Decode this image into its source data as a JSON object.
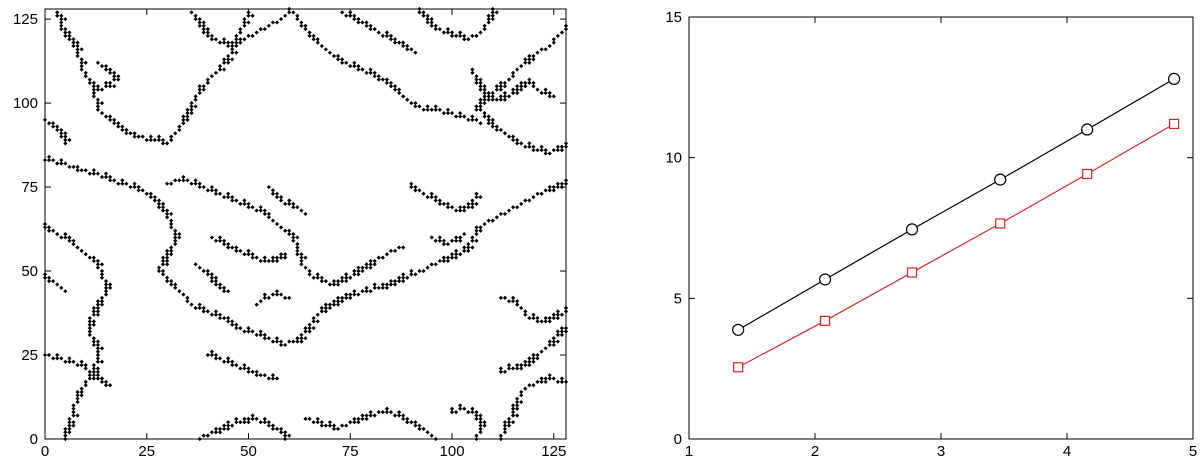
{
  "chart_data": [
    {
      "type": "scatter",
      "title": "",
      "xlabel": "",
      "ylabel": "",
      "xlim": [
        0,
        128
      ],
      "ylim": [
        0,
        128
      ],
      "x_ticks": [
        "0",
        "25",
        "50",
        "75",
        "100",
        "125"
      ],
      "y_ticks": [
        "0",
        "25",
        "50",
        "75",
        "100",
        "125"
      ],
      "grid": false,
      "marker_color": "#000000",
      "marker": "diamond",
      "boundary_paths": [
        [
          [
            3,
            127
          ],
          [
            5,
            120
          ],
          [
            8,
            116
          ],
          [
            9,
            110
          ],
          [
            12,
            105
          ],
          [
            13,
            98
          ],
          [
            16,
            95
          ],
          [
            19,
            92
          ],
          [
            22,
            90
          ],
          [
            26,
            89
          ],
          [
            30,
            88
          ],
          [
            32,
            91
          ],
          [
            34,
            95
          ],
          [
            36,
            99
          ],
          [
            38,
            104
          ],
          [
            41,
            108
          ],
          [
            44,
            112
          ],
          [
            46,
            116
          ],
          [
            47,
            120
          ],
          [
            49,
            124
          ],
          [
            50,
            127
          ]
        ],
        [
          [
            0,
            83
          ],
          [
            4,
            82
          ],
          [
            8,
            80
          ],
          [
            12,
            79
          ],
          [
            16,
            77
          ],
          [
            19,
            76
          ],
          [
            22,
            75
          ],
          [
            26,
            72
          ],
          [
            29,
            68
          ],
          [
            31,
            64
          ],
          [
            32,
            60
          ],
          [
            31,
            56
          ],
          [
            29,
            53
          ],
          [
            28,
            50
          ],
          [
            31,
            46
          ],
          [
            34,
            43
          ],
          [
            36,
            40
          ],
          [
            39,
            38
          ],
          [
            42,
            37
          ],
          [
            45,
            35
          ],
          [
            47,
            33
          ],
          [
            50,
            32
          ],
          [
            54,
            30
          ],
          [
            58,
            28
          ],
          [
            62,
            29
          ]
        ],
        [
          [
            62,
            29
          ],
          [
            64,
            32
          ],
          [
            66,
            36
          ],
          [
            69,
            39
          ],
          [
            72,
            41
          ],
          [
            76,
            43
          ],
          [
            79,
            44
          ],
          [
            83,
            45
          ],
          [
            87,
            47
          ],
          [
            91,
            49
          ],
          [
            94,
            51
          ],
          [
            97,
            53
          ],
          [
            100,
            54
          ],
          [
            103,
            56
          ],
          [
            105,
            59
          ],
          [
            106,
            62
          ],
          [
            108,
            64
          ],
          [
            111,
            66
          ],
          [
            114,
            68
          ],
          [
            117,
            70
          ],
          [
            120,
            72
          ],
          [
            124,
            74
          ],
          [
            128,
            76
          ]
        ],
        [
          [
            30,
            76
          ],
          [
            34,
            77
          ],
          [
            38,
            75
          ],
          [
            42,
            73
          ],
          [
            46,
            71
          ],
          [
            50,
            69
          ],
          [
            54,
            67
          ],
          [
            57,
            64
          ],
          [
            60,
            61
          ],
          [
            62,
            57
          ],
          [
            63,
            52
          ],
          [
            66,
            48
          ],
          [
            70,
            46
          ],
          [
            73,
            47
          ],
          [
            76,
            49
          ],
          [
            80,
            52
          ],
          [
            84,
            55
          ],
          [
            88,
            57
          ]
        ],
        [
          [
            0,
            63
          ],
          [
            3,
            61
          ],
          [
            6,
            59
          ],
          [
            9,
            56
          ],
          [
            12,
            53
          ],
          [
            14,
            49
          ],
          [
            15,
            45
          ],
          [
            14,
            41
          ],
          [
            12,
            38
          ],
          [
            11,
            35
          ],
          [
            11,
            32
          ],
          [
            12,
            29
          ],
          [
            13,
            25
          ],
          [
            12,
            21
          ],
          [
            10,
            17
          ],
          [
            8,
            13
          ],
          [
            7,
            9
          ],
          [
            6,
            5
          ],
          [
            5,
            0
          ]
        ],
        [
          [
            0,
            25
          ],
          [
            3,
            24
          ],
          [
            6,
            23
          ],
          [
            9,
            22
          ],
          [
            11,
            20
          ],
          [
            13,
            18
          ],
          [
            15,
            16
          ]
        ],
        [
          [
            40,
            25
          ],
          [
            44,
            23
          ],
          [
            47,
            22
          ],
          [
            50,
            20
          ],
          [
            52,
            19
          ],
          [
            56,
            18
          ]
        ],
        [
          [
            38,
            0
          ],
          [
            42,
            2
          ],
          [
            45,
            4
          ],
          [
            48,
            5
          ],
          [
            52,
            6
          ],
          [
            55,
            4
          ],
          [
            58,
            2
          ],
          [
            59,
            0
          ]
        ],
        [
          [
            64,
            6
          ],
          [
            68,
            4
          ],
          [
            72,
            3
          ],
          [
            76,
            5
          ],
          [
            80,
            7
          ],
          [
            84,
            8
          ],
          [
            88,
            6
          ],
          [
            91,
            4
          ],
          [
            94,
            2
          ],
          [
            96,
            0
          ]
        ],
        [
          [
            100,
            8
          ],
          [
            103,
            9
          ],
          [
            106,
            7
          ],
          [
            107,
            4
          ],
          [
            106,
            0
          ]
        ],
        [
          [
            112,
            20
          ],
          [
            115,
            21
          ],
          [
            118,
            22
          ],
          [
            120,
            24
          ],
          [
            122,
            26
          ],
          [
            124,
            28
          ],
          [
            126,
            31
          ],
          [
            128,
            33
          ]
        ],
        [
          [
            112,
            0
          ],
          [
            113,
            4
          ],
          [
            115,
            8
          ],
          [
            116,
            12
          ],
          [
            118,
            15
          ],
          [
            121,
            17
          ],
          [
            124,
            18
          ],
          [
            127,
            17
          ]
        ],
        [
          [
            112,
            42
          ],
          [
            115,
            41
          ],
          [
            117,
            39
          ],
          [
            119,
            36
          ],
          [
            122,
            35
          ],
          [
            125,
            36
          ],
          [
            128,
            38
          ]
        ],
        [
          [
            36,
            127
          ],
          [
            38,
            123
          ],
          [
            40,
            120
          ],
          [
            43,
            118
          ],
          [
            46,
            117
          ],
          [
            49,
            119
          ],
          [
            52,
            121
          ],
          [
            55,
            123
          ],
          [
            58,
            125
          ],
          [
            60,
            127
          ]
        ],
        [
          [
            61,
            127
          ],
          [
            63,
            123
          ],
          [
            66,
            119
          ],
          [
            69,
            116
          ],
          [
            72,
            113
          ],
          [
            75,
            111
          ],
          [
            78,
            110
          ],
          [
            81,
            108
          ],
          [
            84,
            106
          ],
          [
            86,
            104
          ],
          [
            89,
            101
          ],
          [
            91,
            99
          ],
          [
            93,
            98
          ],
          [
            96,
            98
          ],
          [
            99,
            97
          ],
          [
            102,
            96
          ],
          [
            105,
            95
          ],
          [
            107,
            94
          ]
        ],
        [
          [
            92,
            127
          ],
          [
            95,
            123
          ],
          [
            98,
            121
          ],
          [
            101,
            120
          ],
          [
            104,
            119
          ],
          [
            107,
            121
          ],
          [
            109,
            124
          ],
          [
            110,
            127
          ]
        ],
        [
          [
            106,
            98
          ],
          [
            108,
            101
          ],
          [
            111,
            104
          ],
          [
            114,
            107
          ],
          [
            116,
            110
          ],
          [
            119,
            113
          ],
          [
            121,
            115
          ],
          [
            124,
            117
          ],
          [
            126,
            120
          ],
          [
            128,
            122
          ]
        ],
        [
          [
            108,
            96
          ],
          [
            110,
            93
          ],
          [
            113,
            91
          ],
          [
            115,
            89
          ],
          [
            118,
            87
          ],
          [
            121,
            86
          ],
          [
            124,
            85
          ],
          [
            126,
            86
          ],
          [
            128,
            87
          ]
        ],
        [
          [
            105,
            110
          ],
          [
            106,
            106
          ],
          [
            108,
            103
          ],
          [
            110,
            101
          ],
          [
            112,
            101
          ],
          [
            115,
            103
          ],
          [
            117,
            105
          ],
          [
            119,
            106
          ],
          [
            121,
            104
          ],
          [
            124,
            102
          ]
        ],
        [
          [
            90,
            75
          ],
          [
            93,
            73
          ],
          [
            96,
            71
          ],
          [
            99,
            69
          ],
          [
            102,
            68
          ],
          [
            105,
            70
          ],
          [
            106,
            73
          ]
        ],
        [
          [
            55,
            75
          ],
          [
            57,
            72
          ],
          [
            59,
            70
          ],
          [
            62,
            69
          ],
          [
            64,
            67
          ]
        ],
        [
          [
            41,
            60
          ],
          [
            44,
            58
          ],
          [
            47,
            56
          ],
          [
            50,
            55
          ],
          [
            53,
            53
          ],
          [
            56,
            53
          ],
          [
            59,
            55
          ]
        ],
        [
          [
            73,
            127
          ],
          [
            76,
            125
          ],
          [
            79,
            123
          ],
          [
            82,
            121
          ],
          [
            85,
            119
          ],
          [
            88,
            117
          ],
          [
            91,
            115
          ]
        ],
        [
          [
            37,
            52
          ],
          [
            40,
            49
          ],
          [
            42,
            46
          ],
          [
            44,
            44
          ]
        ],
        [
          [
            0,
            95
          ],
          [
            2,
            93
          ],
          [
            4,
            91
          ],
          [
            5,
            88
          ]
        ],
        [
          [
            0,
            48
          ],
          [
            3,
            46
          ],
          [
            5,
            44
          ]
        ],
        [
          [
            13,
            112
          ],
          [
            15,
            110
          ],
          [
            17,
            108
          ],
          [
            16,
            105
          ],
          [
            14,
            104
          ],
          [
            12,
            106
          ]
        ],
        [
          [
            52,
            40
          ],
          [
            54,
            42
          ],
          [
            57,
            43
          ],
          [
            60,
            42
          ]
        ],
        [
          [
            95,
            60
          ],
          [
            98,
            58
          ],
          [
            101,
            59
          ],
          [
            103,
            61
          ]
        ]
      ]
    },
    {
      "type": "line",
      "title": "",
      "xlabel": "",
      "ylabel": "",
      "xlim": [
        1,
        5
      ],
      "ylim": [
        0,
        15
      ],
      "x_ticks": [
        "1",
        "2",
        "3",
        "4",
        "5"
      ],
      "y_ticks": [
        "0",
        "5",
        "10",
        "15"
      ],
      "grid": false,
      "series": [
        {
          "x": [
            1.39,
            2.08,
            2.77,
            3.47,
            4.16,
            4.85
          ],
          "y": [
            3.88,
            5.67,
            7.45,
            9.22,
            11.0,
            12.8
          ],
          "color": "#000000",
          "marker": "circle"
        },
        {
          "x": [
            1.39,
            2.08,
            2.77,
            3.47,
            4.16,
            4.85
          ],
          "y": [
            2.55,
            4.2,
            5.92,
            7.66,
            9.42,
            11.2
          ],
          "color": "#d62728",
          "marker": "square"
        }
      ]
    }
  ]
}
